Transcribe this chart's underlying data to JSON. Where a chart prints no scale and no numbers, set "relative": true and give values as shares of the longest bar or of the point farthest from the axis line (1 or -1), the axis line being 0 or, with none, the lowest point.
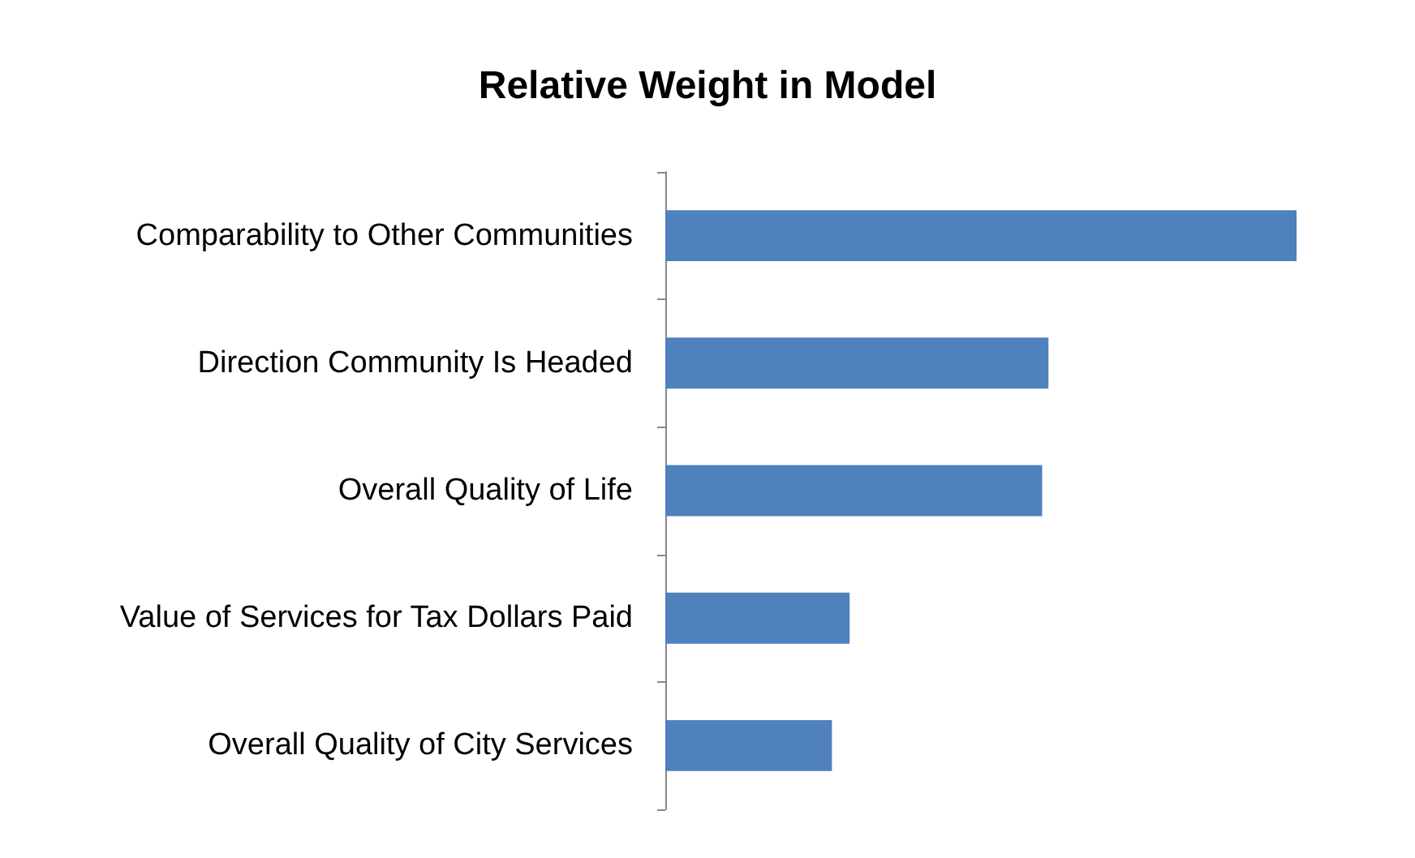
{
  "chart_data": {
    "type": "bar",
    "title": "Relative Weight in Model",
    "orientation": "horizontal",
    "relative": true,
    "categories": [
      "Comparability to Other Communities",
      "Direction Community Is Headed",
      "Overall Quality of Life",
      "Value of Services for Tax Dollars Paid",
      "Overall Quality of City Services"
    ],
    "values": [
      1,
      0.607,
      0.597,
      0.292,
      0.264
    ],
    "color": "#4f81bd"
  }
}
